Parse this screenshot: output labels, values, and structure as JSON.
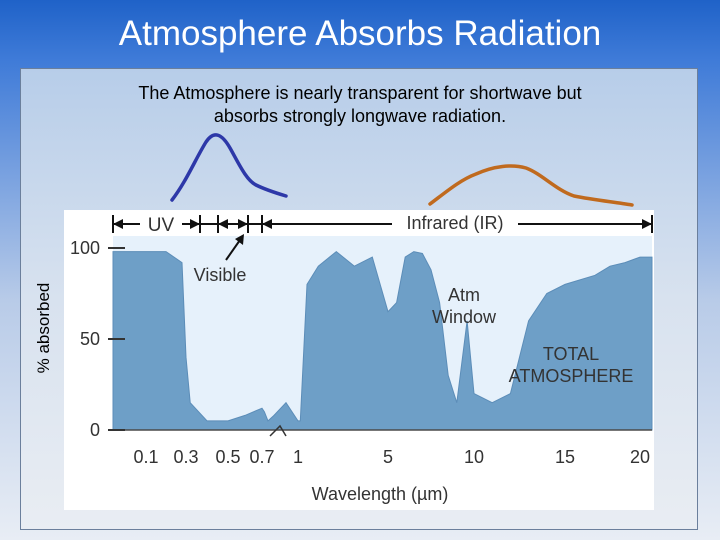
{
  "slide": {
    "title": "Atmosphere Absorbs Radiation",
    "subtitle": "The Atmosphere is nearly transparent for shortwave but\nabsorbs strongly longwave radiation."
  },
  "colors": {
    "uv_curve": "#2d38a8",
    "ir_curve": "#c06a1e",
    "absorption_fill": "#6e9fc7",
    "plot_background": "#e6f1fb",
    "chart_text": "#333333"
  },
  "chart_data": {
    "type": "area",
    "title": "",
    "ylabel": "% absorbed",
    "xlabel": "Wavelength (µm)",
    "x_tick_labels": [
      "0.1",
      "0.3",
      "0.5",
      "0.7",
      "1",
      "5",
      "10",
      "15",
      "20"
    ],
    "y_tick_labels": [
      "0",
      "50",
      "100"
    ],
    "ylim": [
      0,
      100
    ],
    "band_labels": [
      "UV",
      "Infrared (IR)"
    ],
    "annotations": [
      "Visible",
      "Atm\nWindow",
      "TOTAL\nATMOSPHERE"
    ],
    "series": [
      {
        "name": "TOTAL ATMOSPHERE",
        "x": [
          0.1,
          0.2,
          0.28,
          0.3,
          0.32,
          0.4,
          0.5,
          0.6,
          0.7,
          0.72,
          0.75,
          0.8,
          0.9,
          1,
          1.1,
          1.4,
          1.9,
          2.7,
          3.5,
          4.3,
          5,
          5.5,
          6,
          6.5,
          7,
          7.5,
          8,
          8.5,
          9,
          9.6,
          10,
          11,
          12,
          13,
          14,
          15,
          17,
          18,
          19,
          20
        ],
        "y": [
          98,
          98,
          92,
          40,
          15,
          5,
          5,
          8,
          12,
          10,
          5,
          8,
          15,
          5,
          5,
          80,
          90,
          98,
          90,
          95,
          65,
          70,
          95,
          98,
          97,
          88,
          70,
          30,
          15,
          60,
          20,
          15,
          20,
          60,
          75,
          80,
          85,
          90,
          92,
          95
        ]
      }
    ],
    "spectra": [
      {
        "name": "UV/Visible peak",
        "curve": "shortwave"
      },
      {
        "name": "IR peak",
        "curve": "longwave"
      }
    ]
  }
}
